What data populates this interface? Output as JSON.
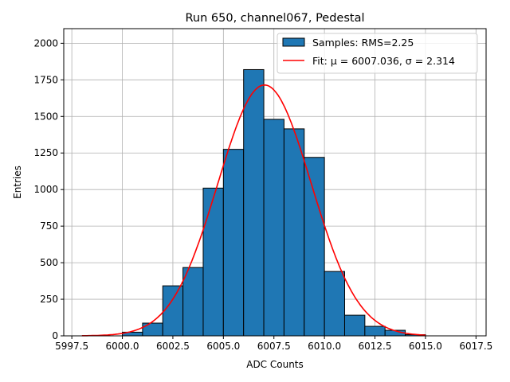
{
  "chart_data": {
    "type": "bar",
    "title": "Run 650, channel067, Pedestal",
    "xlabel": "ADC Counts",
    "ylabel": "Entries",
    "xlim": [
      5997.1,
      6018.0
    ],
    "ylim": [
      0,
      2100
    ],
    "grid": true,
    "legend_placement": "top-right",
    "xticks": [
      5997.5,
      6000,
      6002.5,
      6005,
      6007.5,
      6010,
      6012.5,
      6015,
      6017.5
    ],
    "xtick_labels": [
      "5997.5",
      "6000.0",
      "6002.5",
      "6005.0",
      "6007.5",
      "6010.0",
      "6012.5",
      "6015.0",
      "6017.5"
    ],
    "yticks": [
      0,
      250,
      500,
      750,
      1000,
      1250,
      1500,
      1750,
      2000
    ],
    "ytick_labels": [
      "0",
      "250",
      "500",
      "750",
      "1000",
      "1250",
      "1500",
      "1750",
      "2000"
    ],
    "bin_edges": [
      6000,
      6001,
      6002,
      6003,
      6004,
      6005,
      6006,
      6007,
      6008,
      6009,
      6010,
      6011,
      6012,
      6013,
      6014,
      6015
    ],
    "values": [
      25,
      87,
      342,
      467,
      1010,
      1275,
      1820,
      1480,
      1415,
      1220,
      440,
      141,
      65,
      38,
      8
    ],
    "bar_color": "#1f77b4",
    "fit": {
      "mu": 6007.036,
      "sigma": 2.314,
      "amplitude": 1715,
      "range": [
        5998,
        6015
      ],
      "color": "#ff0000"
    },
    "legend": [
      {
        "label": "Samples: RMS=2.25"
      },
      {
        "label": "Fit: μ = 6007.036, σ = 2.314"
      }
    ]
  }
}
